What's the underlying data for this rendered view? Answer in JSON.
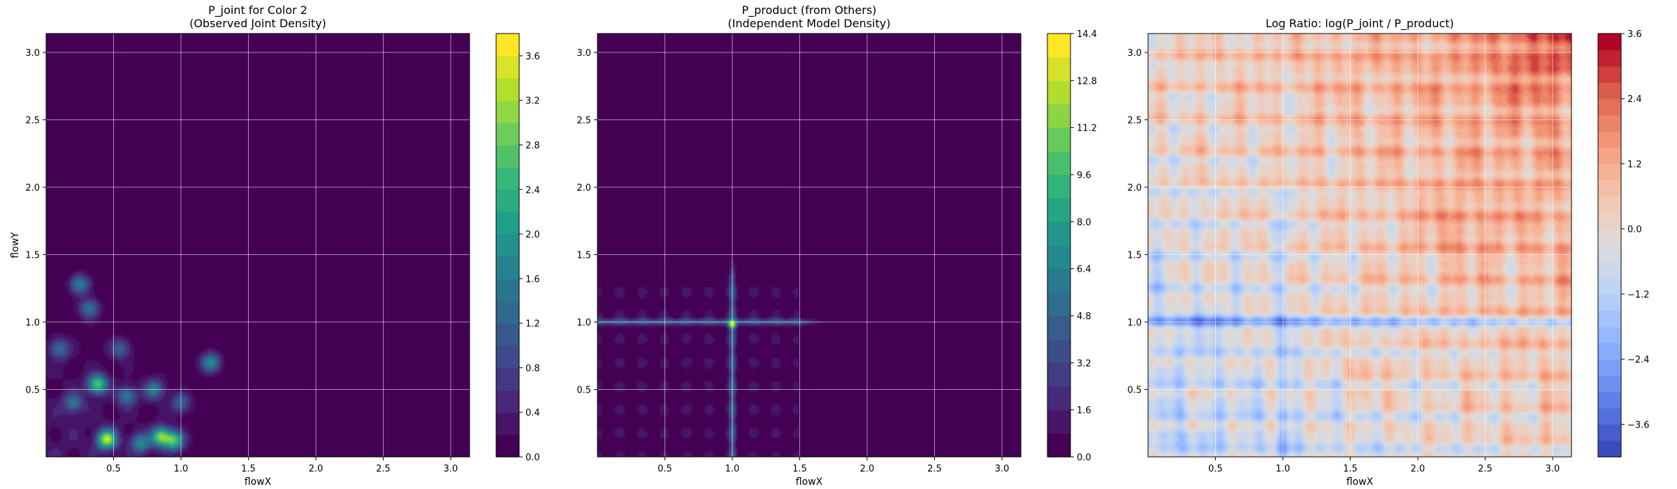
{
  "chart_data": [
    {
      "type": "heatmap",
      "title": "P_joint for Color 2",
      "subtitle": "(Observed Joint Density)",
      "xlabel": "flowX",
      "ylabel": "flowY",
      "xlim": [
        0.0,
        3.14
      ],
      "ylim": [
        0.0,
        3.14
      ],
      "xticks": [
        "0.5",
        "1.0",
        "1.5",
        "2.0",
        "2.5",
        "3.0"
      ],
      "yticks": [
        "0.5",
        "1.0",
        "1.5",
        "2.0",
        "2.5",
        "3.0"
      ],
      "grid": true,
      "colormap": "viridis",
      "colorbar": {
        "min": 0.0,
        "max": 3.8,
        "ticks": [
          "0.0",
          "0.4",
          "0.8",
          "1.2",
          "1.6",
          "2.0",
          "2.4",
          "2.8",
          "3.2",
          "3.6"
        ],
        "levels": 19
      },
      "peaks": [
        {
          "x": 0.25,
          "y": 1.28,
          "v": 1.6
        },
        {
          "x": 0.32,
          "y": 1.1,
          "v": 1.4
        },
        {
          "x": 0.1,
          "y": 0.8,
          "v": 1.3
        },
        {
          "x": 0.38,
          "y": 0.54,
          "v": 2.6
        },
        {
          "x": 0.45,
          "y": 0.13,
          "v": 3.2
        },
        {
          "x": 0.6,
          "y": 0.45,
          "v": 1.4
        },
        {
          "x": 0.8,
          "y": 0.5,
          "v": 1.5
        },
        {
          "x": 0.85,
          "y": 0.15,
          "v": 2.8
        },
        {
          "x": 0.95,
          "y": 0.12,
          "v": 2.4
        },
        {
          "x": 1.22,
          "y": 0.7,
          "v": 1.8
        },
        {
          "x": 0.7,
          "y": 0.1,
          "v": 1.6
        },
        {
          "x": 0.2,
          "y": 0.4,
          "v": 1.3
        },
        {
          "x": 1.0,
          "y": 0.4,
          "v": 1.1
        },
        {
          "x": 0.55,
          "y": 0.8,
          "v": 1.1
        }
      ]
    },
    {
      "type": "heatmap",
      "title": "P_product (from Others)",
      "subtitle": "(Independent Model Density)",
      "xlabel": "flowX",
      "ylabel": "",
      "xlim": [
        0.0,
        3.14
      ],
      "ylim": [
        0.0,
        3.14
      ],
      "xticks": [
        "0.5",
        "1.0",
        "1.5",
        "2.0",
        "2.5",
        "3.0"
      ],
      "yticks": [
        "0.5",
        "1.0",
        "1.5",
        "2.0",
        "2.5",
        "3.0"
      ],
      "grid": true,
      "colormap": "viridis",
      "colorbar": {
        "min": 0.0,
        "max": 14.4,
        "ticks": [
          "0.0",
          "1.6",
          "3.2",
          "4.8",
          "6.4",
          "8.0",
          "9.6",
          "11.2",
          "12.8",
          "14.4"
        ],
        "levels": 18
      },
      "lines": [
        {
          "axis": "x",
          "at": 1.0,
          "v": 4.0
        },
        {
          "axis": "y",
          "at": 1.0,
          "v": 4.0
        }
      ],
      "peak": {
        "x": 1.0,
        "y": 0.98,
        "v": 9.0
      }
    },
    {
      "type": "heatmap",
      "title": "Log Ratio: log(P_joint / P_product)",
      "subtitle": "",
      "xlabel": "flowX",
      "ylabel": "",
      "xlim": [
        0.0,
        3.14
      ],
      "ylim": [
        0.0,
        3.14
      ],
      "xticks": [
        "0.5",
        "1.0",
        "1.5",
        "2.0",
        "2.5",
        "3.0"
      ],
      "yticks": [
        "0.5",
        "1.0",
        "1.5",
        "2.0",
        "2.5",
        "3.0"
      ],
      "grid": true,
      "colormap": "coolwarm",
      "colorbar": {
        "min": -4.2,
        "max": 3.6,
        "ticks": [
          "3.6",
          "2.4",
          "1.2",
          "0.0",
          "−1.2",
          "−2.4",
          "−3.6"
        ],
        "levels": 26
      }
    }
  ]
}
